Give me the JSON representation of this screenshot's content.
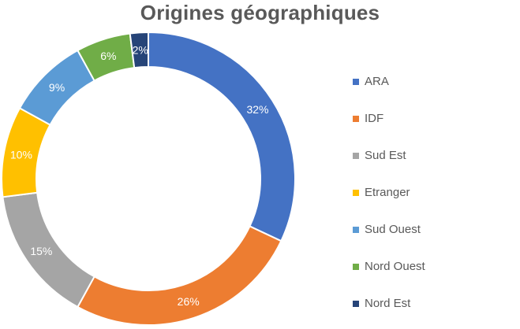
{
  "chart_data": {
    "type": "pie",
    "style": "donut",
    "title": "Origines géographiques",
    "legend_position": "right",
    "slices": [
      {
        "label": "ARA",
        "value": 32,
        "value_label": "32%",
        "color": "#4472C4",
        "label_color": "#ffffff"
      },
      {
        "label": "IDF",
        "value": 26,
        "value_label": "26%",
        "color": "#ED7D31",
        "label_color": "#ffffff"
      },
      {
        "label": "Sud Est",
        "value": 15,
        "value_label": "15%",
        "color": "#A5A5A5",
        "label_color": "#ffffff"
      },
      {
        "label": "Etranger",
        "value": 10,
        "value_label": "10%",
        "color": "#FFC000",
        "label_color": "#ffffff"
      },
      {
        "label": "Sud Ouest",
        "value": 9,
        "value_label": "9%",
        "color": "#5B9BD5",
        "label_color": "#ffffff"
      },
      {
        "label": "Nord Ouest",
        "value": 6,
        "value_label": "6%",
        "color": "#70AD47",
        "label_color": "#ffffff"
      },
      {
        "label": "Nord Est",
        "value": 2,
        "value_label": "2%",
        "color": "#264478",
        "label_color": "#ffffff"
      }
    ]
  }
}
